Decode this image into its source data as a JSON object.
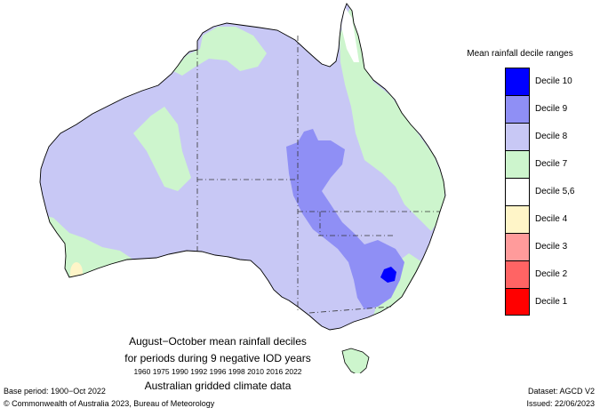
{
  "legend": {
    "title": "Mean rainfall decile ranges",
    "items": [
      {
        "label": "Decile 10",
        "color": "#0000ff"
      },
      {
        "label": "Decile 9",
        "color": "#8f8ff5"
      },
      {
        "label": "Decile 8",
        "color": "#c8c8f5"
      },
      {
        "label": "Decile 7",
        "color": "#cdf5cd"
      },
      {
        "label": "Decile 5,6",
        "color": "#ffffff"
      },
      {
        "label": "Decile 4",
        "color": "#fff5c8"
      },
      {
        "label": "Decile 3",
        "color": "#ff9b9b"
      },
      {
        "label": "Decile 2",
        "color": "#ff6464"
      },
      {
        "label": "Decile 1",
        "color": "#ff0000"
      }
    ]
  },
  "caption": {
    "line1": "August−October mean rainfall deciles",
    "line2": "for periods during 9 negative IOD years",
    "years": "1960 1975 1990 1992 1996 1998 2010 2016 2022",
    "line4": "Australian gridded climate data"
  },
  "footer": {
    "base_period": "Base period: 1900−Oct 2022",
    "copyright": "© Commonwealth of Australia 2023, Bureau of Meteorology",
    "dataset": "Dataset: AGCD V2",
    "issued": "Issued: 22/06/2023"
  }
}
